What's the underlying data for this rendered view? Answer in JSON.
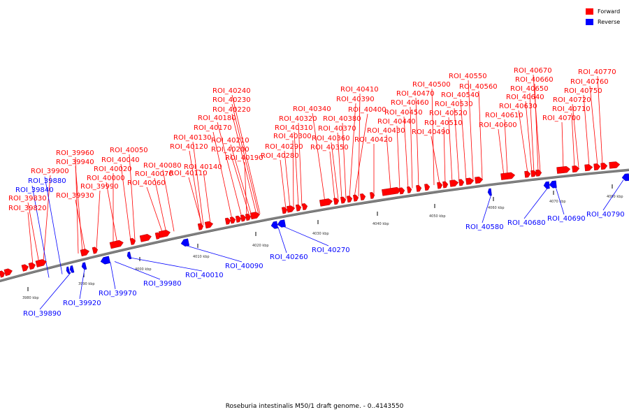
{
  "caption": "Roseburia intestinalis M50/1 draft genome. - 0..4143550",
  "legend": [
    {
      "label": "Forward",
      "color": "#ff0000"
    },
    {
      "label": "Reverse",
      "color": "#0000ff"
    }
  ],
  "colors": {
    "forward": "#ff0000",
    "reverse": "#0000ff",
    "backbone": "#808080"
  },
  "scale_ticks": [
    {
      "kbp": 3980,
      "label": "3980 kbp"
    },
    {
      "kbp": 3990,
      "label": "3990 kbp"
    },
    {
      "kbp": 4000,
      "label": "4000 kbp"
    },
    {
      "kbp": 4010,
      "label": "4010 kbp"
    },
    {
      "kbp": 4020,
      "label": "4020 kbp"
    },
    {
      "kbp": 4030,
      "label": "4030 kbp"
    },
    {
      "kbp": 4040,
      "label": "4040 kbp"
    },
    {
      "kbp": 4050,
      "label": "4050 kbp"
    },
    {
      "kbp": 4060,
      "label": "4060 kbp"
    },
    {
      "kbp": 4070,
      "label": "4070 kbp"
    },
    {
      "kbp": 4080,
      "label": "4080 kbp"
    }
  ],
  "forward_labels": [
    "ROI_39820",
    "ROI_39830",
    "ROI_39900",
    "ROI_39930",
    "ROI_39940",
    "ROI_39960",
    "ROI_39990",
    "ROI_40000",
    "ROI_40020",
    "ROI_40040",
    "ROI_40050",
    "ROI_40060",
    "ROI_40070",
    "ROI_40080",
    "ROI_40110",
    "ROI_40120",
    "ROI_40130",
    "ROI_40140",
    "ROI_40170",
    "ROI_40180",
    "ROI_40190",
    "ROI_40200",
    "ROI_40210",
    "ROI_40220",
    "ROI_40230",
    "ROI_40240",
    "ROI_40280",
    "ROI_40290",
    "ROI_40300",
    "ROI_40310",
    "ROI_40320",
    "ROI_40340",
    "ROI_40350",
    "ROI_40360",
    "ROI_40370",
    "ROI_40380",
    "ROI_40390",
    "ROI_40400",
    "ROI_40410",
    "ROI_40420",
    "ROI_40430",
    "ROI_40440",
    "ROI_40450",
    "ROI_40460",
    "ROI_40470",
    "ROI_40490",
    "ROI_40500",
    "ROI_40510",
    "ROI_40520",
    "ROI_40530",
    "ROI_40540",
    "ROI_40550",
    "ROI_40560",
    "ROI_40600",
    "ROI_40610",
    "ROI_40630",
    "ROI_40640",
    "ROI_40650",
    "ROI_40660",
    "ROI_40670",
    "ROI_40700",
    "ROI_40710",
    "ROI_40720",
    "ROI_40750",
    "ROI_40760",
    "ROI_40770"
  ],
  "reverse_labels": [
    "ROI_39840",
    "ROI_39880",
    "ROI_39890",
    "ROI_39920",
    "ROI_39970",
    "ROI_39980",
    "ROI_40010",
    "ROI_40090",
    "ROI_40260",
    "ROI_40270",
    "ROI_40580",
    "ROI_40680",
    "ROI_40690",
    "ROI_40790"
  ]
}
